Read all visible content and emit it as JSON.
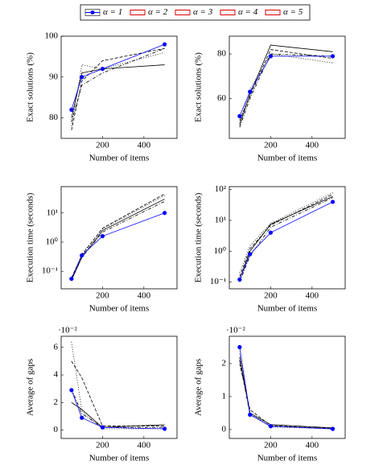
{
  "legend": [
    {
      "name": "α = 1",
      "color": "#0000ff",
      "marker": true
    },
    {
      "name": "α = 2",
      "color": "#dd0000"
    },
    {
      "name": "α = 3",
      "color": "#dd0000"
    },
    {
      "name": "α = 4",
      "color": "#dd0000"
    },
    {
      "name": "α = 5",
      "color": "#dd0000"
    }
  ],
  "chart_data": [
    {
      "type": "line",
      "xlabel": "Number of items",
      "ylabel": "Exact solutions (%)",
      "x": [
        50,
        100,
        200,
        500
      ],
      "xlim": [
        0,
        560
      ],
      "xticks": [
        200,
        400
      ],
      "ylim": [
        75,
        100
      ],
      "yticks": [
        80,
        90,
        100
      ],
      "series": [
        {
          "color": "#0000ff",
          "dash": "none",
          "marker": true,
          "values": [
            82,
            90,
            92,
            98
          ]
        },
        {
          "color": "#000000",
          "dash": "none",
          "values": [
            80,
            91,
            92,
            93
          ]
        },
        {
          "color": "#000000",
          "dash": "4 2",
          "values": [
            77,
            89,
            94,
            97
          ]
        },
        {
          "color": "#000000",
          "dash": "4 2 1 2",
          "values": [
            79,
            88,
            91,
            97
          ]
        },
        {
          "color": "#000000",
          "dash": "1 2",
          "values": [
            78,
            93,
            92,
            96
          ]
        }
      ]
    },
    {
      "type": "line",
      "xlabel": "Number of items",
      "ylabel": "Exact solutions (%)",
      "x": [
        50,
        100,
        200,
        500
      ],
      "xlim": [
        0,
        560
      ],
      "xticks": [
        200,
        400
      ],
      "ylim": [
        42,
        88
      ],
      "yticks": [
        60,
        80
      ],
      "series": [
        {
          "color": "#0000ff",
          "dash": "none",
          "marker": true,
          "values": [
            52,
            63,
            79,
            79
          ]
        },
        {
          "color": "#000000",
          "dash": "none",
          "values": [
            48,
            62,
            84,
            81
          ]
        },
        {
          "color": "#000000",
          "dash": "4 2",
          "values": [
            50,
            61,
            82,
            78
          ]
        },
        {
          "color": "#000000",
          "dash": "4 2 1 2",
          "values": [
            47,
            60,
            80,
            79
          ]
        },
        {
          "color": "#000000",
          "dash": "1 2",
          "values": [
            49,
            64,
            80,
            76
          ]
        }
      ]
    },
    {
      "type": "line",
      "xlabel": "Number of items",
      "ylabel": "Execution time (seconds)",
      "x": [
        50,
        100,
        200,
        500
      ],
      "xlim": [
        0,
        560
      ],
      "xticks": [
        200,
        400
      ],
      "log_y": true,
      "ylim": [
        0.025,
        80
      ],
      "yticks": [
        {
          "value": 0.1,
          "label": "10⁻¹"
        },
        {
          "value": 1,
          "label": "10⁰"
        },
        {
          "value": 10,
          "label": "10¹"
        }
      ],
      "series": [
        {
          "color": "#0000ff",
          "dash": "none",
          "marker": true,
          "values": [
            0.055,
            0.35,
            1.6,
            10
          ]
        },
        {
          "color": "#000000",
          "dash": "none",
          "values": [
            0.05,
            0.3,
            2.5,
            30
          ]
        },
        {
          "color": "#000000",
          "dash": "4 2",
          "values": [
            0.06,
            0.35,
            3,
            45
          ]
        },
        {
          "color": "#000000",
          "dash": "4 2 1 2",
          "values": [
            0.05,
            0.3,
            2.2,
            25
          ]
        },
        {
          "color": "#000000",
          "dash": "1 2",
          "values": [
            0.05,
            0.4,
            2.8,
            40
          ]
        }
      ]
    },
    {
      "type": "line",
      "xlabel": "Number of items",
      "ylabel": "Execution time (seconds)",
      "x": [
        50,
        100,
        200,
        500
      ],
      "xlim": [
        0,
        560
      ],
      "xticks": [
        200,
        400
      ],
      "log_y": true,
      "ylim": [
        0.06,
        125
      ],
      "yticks": [
        {
          "value": 0.1,
          "label": "10⁻¹"
        },
        {
          "value": 1,
          "label": "10⁰"
        },
        {
          "value": 10,
          "label": "10¹"
        },
        {
          "value": 100,
          "label": "10²"
        }
      ],
      "series": [
        {
          "color": "#0000ff",
          "dash": "none",
          "marker": true,
          "values": [
            0.12,
            0.8,
            4,
            40
          ]
        },
        {
          "color": "#000000",
          "dash": "none",
          "values": [
            0.12,
            1,
            7.5,
            60
          ]
        },
        {
          "color": "#000000",
          "dash": "4 2",
          "values": [
            0.15,
            1.2,
            7,
            70
          ]
        },
        {
          "color": "#000000",
          "dash": "4 2 1 2",
          "values": [
            0.1,
            0.7,
            6,
            55
          ]
        },
        {
          "color": "#000000",
          "dash": "1 2",
          "values": [
            0.2,
            1.5,
            8,
            80
          ]
        }
      ]
    },
    {
      "type": "line",
      "xlabel": "Number of items",
      "ylabel": "Average of gaps",
      "y_multiplier": "·10⁻²",
      "x": [
        50,
        100,
        200,
        500
      ],
      "xlim": [
        0,
        560
      ],
      "xticks": [
        200,
        400
      ],
      "ylim": [
        -0.6,
        6.8
      ],
      "yticks": [
        0,
        2,
        4,
        6
      ],
      "series": [
        {
          "color": "#0000ff",
          "dash": "none",
          "marker": true,
          "values": [
            2.9,
            0.9,
            0.2,
            0.1
          ]
        },
        {
          "color": "#000000",
          "dash": "none",
          "values": [
            2,
            1.5,
            0.2,
            0.4
          ]
        },
        {
          "color": "#000000",
          "dash": "4 2",
          "values": [
            5,
            3.8,
            0.3,
            0.3
          ]
        },
        {
          "color": "#000000",
          "dash": "4 2 1 2",
          "values": [
            3,
            1.2,
            0.2,
            0.2
          ]
        },
        {
          "color": "#000000",
          "dash": "1 2",
          "values": [
            6.4,
            1.4,
            0.1,
            0.1
          ]
        }
      ]
    },
    {
      "type": "line",
      "xlabel": "Number of items",
      "ylabel": "Average of gaps",
      "y_multiplier": "·10⁻²",
      "x": [
        50,
        100,
        200,
        500
      ],
      "xlim": [
        0,
        560
      ],
      "xticks": [
        200,
        400
      ],
      "ylim": [
        -0.27,
        2.83
      ],
      "yticks": [
        0,
        1,
        2
      ],
      "series": [
        {
          "color": "#0000ff",
          "dash": "none",
          "marker": true,
          "values": [
            2.5,
            0.45,
            0.1,
            0.02
          ]
        },
        {
          "color": "#000000",
          "dash": "none",
          "values": [
            2.2,
            0.5,
            0.15,
            0.05
          ]
        },
        {
          "color": "#000000",
          "dash": "4 2",
          "values": [
            2.0,
            0.6,
            0.12,
            0.03
          ]
        },
        {
          "color": "#000000",
          "dash": "4 2 1 2",
          "values": [
            2.1,
            0.45,
            0.1,
            0.04
          ]
        },
        {
          "color": "#000000",
          "dash": "1 2",
          "values": [
            2.3,
            0.5,
            0.08,
            0.02
          ]
        }
      ]
    }
  ]
}
